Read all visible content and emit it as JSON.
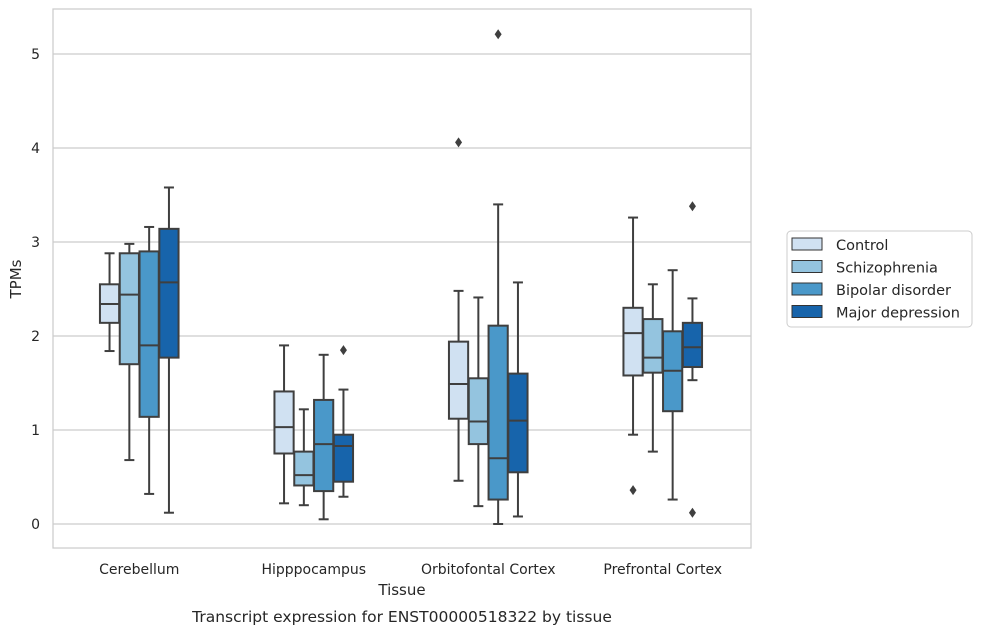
{
  "chart_data": {
    "type": "box",
    "caption": "Transcript expression for ENST00000518322 by tissue",
    "xlabel": "Tissue",
    "ylabel": "TPMs",
    "ylim": [
      -0.25,
      5.5
    ],
    "yticks": [
      0,
      1,
      2,
      3,
      4,
      5
    ],
    "grid": true,
    "legend_position": "right",
    "categories": [
      "Cerebellum",
      "Hipppocampus",
      "Orbitofontal Cortex",
      "Prefrontal Cortex"
    ],
    "series": [
      {
        "name": "Control",
        "color": "#d0e1f2",
        "boxes": [
          {
            "whislo": 1.84,
            "q1": 2.14,
            "med": 2.34,
            "q3": 2.55,
            "whishi": 2.88,
            "fliers": []
          },
          {
            "whislo": 0.22,
            "q1": 0.75,
            "med": 1.03,
            "q3": 1.41,
            "whishi": 1.9,
            "fliers": []
          },
          {
            "whislo": 0.46,
            "q1": 1.12,
            "med": 1.49,
            "q3": 1.94,
            "whishi": 2.48,
            "fliers": [
              4.06
            ]
          },
          {
            "whislo": 0.95,
            "q1": 1.58,
            "med": 2.03,
            "q3": 2.3,
            "whishi": 3.26,
            "fliers": [
              0.36
            ]
          }
        ]
      },
      {
        "name": "Schizophrenia",
        "color": "#94c4df",
        "boxes": [
          {
            "whislo": 0.68,
            "q1": 1.7,
            "med": 2.44,
            "q3": 2.88,
            "whishi": 2.98,
            "fliers": []
          },
          {
            "whislo": 0.2,
            "q1": 0.41,
            "med": 0.52,
            "q3": 0.77,
            "whishi": 1.22,
            "fliers": []
          },
          {
            "whislo": 0.19,
            "q1": 0.85,
            "med": 1.09,
            "q3": 1.55,
            "whishi": 2.41,
            "fliers": []
          },
          {
            "whislo": 0.77,
            "q1": 1.61,
            "med": 1.77,
            "q3": 2.18,
            "whishi": 2.55,
            "fliers": []
          }
        ]
      },
      {
        "name": "Bipolar disorder",
        "color": "#4a98c9",
        "boxes": [
          {
            "whislo": 0.32,
            "q1": 1.14,
            "med": 1.9,
            "q3": 2.9,
            "whishi": 3.16,
            "fliers": []
          },
          {
            "whislo": 0.05,
            "q1": 0.35,
            "med": 0.85,
            "q3": 1.32,
            "whishi": 1.8,
            "fliers": []
          },
          {
            "whislo": 0.0,
            "q1": 0.26,
            "med": 0.7,
            "q3": 2.11,
            "whishi": 3.4,
            "fliers": [
              5.21
            ]
          },
          {
            "whislo": 0.26,
            "q1": 1.2,
            "med": 1.63,
            "q3": 2.05,
            "whishi": 2.7,
            "fliers": []
          }
        ]
      },
      {
        "name": "Major depression",
        "color": "#1764ab",
        "boxes": [
          {
            "whislo": 0.12,
            "q1": 1.77,
            "med": 2.57,
            "q3": 3.14,
            "whishi": 3.58,
            "fliers": []
          },
          {
            "whislo": 0.29,
            "q1": 0.45,
            "med": 0.83,
            "q3": 0.95,
            "whishi": 1.43,
            "fliers": [
              1.85
            ]
          },
          {
            "whislo": 0.08,
            "q1": 0.55,
            "med": 1.1,
            "q3": 1.6,
            "whishi": 2.57,
            "fliers": []
          },
          {
            "whislo": 1.53,
            "q1": 1.67,
            "med": 1.88,
            "q3": 2.14,
            "whishi": 2.4,
            "fliers": [
              3.38,
              0.12
            ]
          }
        ]
      }
    ]
  }
}
